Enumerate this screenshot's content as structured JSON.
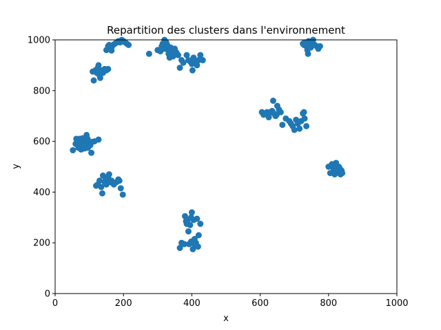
{
  "chart_data": {
    "type": "scatter",
    "title": "Repartition des clusters dans l'environnement",
    "xlabel": "x",
    "ylabel": "y",
    "xlim": [
      0,
      1000
    ],
    "ylim": [
      0,
      1000
    ],
    "xticks": [
      "0",
      "200",
      "400",
      "600",
      "800",
      "1000"
    ],
    "yticks": [
      "0",
      "200",
      "400",
      "600",
      "800",
      "1000"
    ],
    "grid": false,
    "marker_color": "#1f77b4",
    "points": [
      [
        52,
        565
      ],
      [
        60,
        590
      ],
      [
        62,
        610
      ],
      [
        65,
        600
      ],
      [
        68,
        575
      ],
      [
        70,
        595
      ],
      [
        72,
        610
      ],
      [
        75,
        580
      ],
      [
        76,
        568
      ],
      [
        78,
        600
      ],
      [
        80,
        612
      ],
      [
        82,
        585
      ],
      [
        85,
        595
      ],
      [
        86,
        572
      ],
      [
        88,
        605
      ],
      [
        90,
        590
      ],
      [
        92,
        625
      ],
      [
        95,
        610
      ],
      [
        96,
        575
      ],
      [
        100,
        595
      ],
      [
        103,
        585
      ],
      [
        106,
        555
      ],
      [
        108,
        598
      ],
      [
        115,
        600
      ],
      [
        127,
        607
      ],
      [
        74,
        590
      ],
      [
        84,
        578
      ],
      [
        110,
        875
      ],
      [
        113,
        840
      ],
      [
        118,
        880
      ],
      [
        122,
        870
      ],
      [
        125,
        890
      ],
      [
        127,
        900
      ],
      [
        130,
        860
      ],
      [
        132,
        850
      ],
      [
        135,
        880
      ],
      [
        140,
        870
      ],
      [
        145,
        885
      ],
      [
        150,
        880
      ],
      [
        155,
        885
      ],
      [
        150,
        960
      ],
      [
        155,
        975
      ],
      [
        158,
        980
      ],
      [
        160,
        965
      ],
      [
        165,
        970
      ],
      [
        170,
        980
      ],
      [
        175,
        985
      ],
      [
        180,
        990
      ],
      [
        185,
        995
      ],
      [
        190,
        990
      ],
      [
        195,
        1000
      ],
      [
        200,
        995
      ],
      [
        205,
        990
      ],
      [
        210,
        985
      ],
      [
        215,
        980
      ],
      [
        165,
        958
      ],
      [
        275,
        945
      ],
      [
        300,
        960
      ],
      [
        308,
        955
      ],
      [
        312,
        975
      ],
      [
        315,
        985
      ],
      [
        318,
        965
      ],
      [
        320,
        1000
      ],
      [
        325,
        990
      ],
      [
        328,
        980
      ],
      [
        330,
        960
      ],
      [
        332,
        945
      ],
      [
        335,
        930
      ],
      [
        338,
        970
      ],
      [
        340,
        955
      ],
      [
        345,
        935
      ],
      [
        350,
        965
      ],
      [
        355,
        950
      ],
      [
        360,
        940
      ],
      [
        365,
        890
      ],
      [
        370,
        920
      ],
      [
        375,
        910
      ],
      [
        385,
        940
      ],
      [
        390,
        920
      ],
      [
        395,
        915
      ],
      [
        400,
        905
      ],
      [
        402,
        880
      ],
      [
        405,
        930
      ],
      [
        410,
        910
      ],
      [
        415,
        900
      ],
      [
        420,
        920
      ],
      [
        425,
        940
      ],
      [
        432,
        920
      ],
      [
        725,
        985
      ],
      [
        728,
        980
      ],
      [
        730,
        990
      ],
      [
        735,
        975
      ],
      [
        738,
        960
      ],
      [
        740,
        945
      ],
      [
        742,
        995
      ],
      [
        745,
        985
      ],
      [
        748,
        970
      ],
      [
        750,
        990
      ],
      [
        755,
        1000
      ],
      [
        760,
        980
      ],
      [
        765,
        975
      ],
      [
        770,
        965
      ],
      [
        775,
        975
      ],
      [
        605,
        715
      ],
      [
        610,
        705
      ],
      [
        615,
        710
      ],
      [
        620,
        715
      ],
      [
        625,
        695
      ],
      [
        630,
        715
      ],
      [
        635,
        720
      ],
      [
        638,
        760
      ],
      [
        640,
        710
      ],
      [
        645,
        700
      ],
      [
        648,
        705
      ],
      [
        650,
        740
      ],
      [
        655,
        725
      ],
      [
        660,
        715
      ],
      [
        665,
        665
      ],
      [
        675,
        690
      ],
      [
        685,
        680
      ],
      [
        690,
        670
      ],
      [
        695,
        660
      ],
      [
        700,
        645
      ],
      [
        705,
        685
      ],
      [
        710,
        670
      ],
      [
        715,
        650
      ],
      [
        720,
        680
      ],
      [
        725,
        710
      ],
      [
        728,
        715
      ],
      [
        730,
        690
      ],
      [
        735,
        660
      ],
      [
        800,
        500
      ],
      [
        805,
        475
      ],
      [
        810,
        510
      ],
      [
        815,
        490
      ],
      [
        818,
        470
      ],
      [
        820,
        505
      ],
      [
        822,
        515
      ],
      [
        825,
        490
      ],
      [
        828,
        480
      ],
      [
        830,
        500
      ],
      [
        832,
        495
      ],
      [
        835,
        470
      ],
      [
        838,
        485
      ],
      [
        840,
        475
      ],
      [
        120,
        425
      ],
      [
        125,
        430
      ],
      [
        130,
        445
      ],
      [
        135,
        420
      ],
      [
        138,
        395
      ],
      [
        140,
        465
      ],
      [
        145,
        440
      ],
      [
        148,
        450
      ],
      [
        150,
        430
      ],
      [
        155,
        460
      ],
      [
        158,
        470
      ],
      [
        160,
        440
      ],
      [
        165,
        445
      ],
      [
        168,
        435
      ],
      [
        172,
        430
      ],
      [
        180,
        440
      ],
      [
        185,
        450
      ],
      [
        188,
        445
      ],
      [
        192,
        415
      ],
      [
        198,
        390
      ],
      [
        365,
        180
      ],
      [
        370,
        200
      ],
      [
        378,
        195
      ],
      [
        380,
        305
      ],
      [
        383,
        285
      ],
      [
        385,
        275
      ],
      [
        388,
        290
      ],
      [
        390,
        245
      ],
      [
        392,
        195
      ],
      [
        395,
        270
      ],
      [
        398,
        300
      ],
      [
        400,
        320
      ],
      [
        403,
        175
      ],
      [
        405,
        290
      ],
      [
        408,
        215
      ],
      [
        410,
        190
      ],
      [
        412,
        200
      ],
      [
        415,
        295
      ],
      [
        418,
        185
      ],
      [
        420,
        230
      ],
      [
        425,
        275
      ],
      [
        398,
        205
      ],
      [
        405,
        198
      ]
    ]
  }
}
